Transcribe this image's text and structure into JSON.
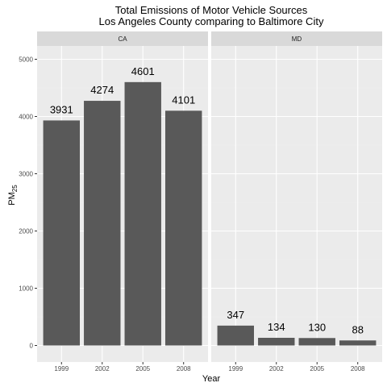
{
  "chart_data": {
    "type": "bar",
    "title": "Total Emissions of Motor Vehicle Sources",
    "subtitle": "Los Angeles County comparing to Baltimore City",
    "xlabel": "Year",
    "ylabel": "PM",
    "ylabel_subscript": "25",
    "ylim": [
      0,
      5000
    ],
    "yticks": [
      0,
      1000,
      2000,
      3000,
      4000,
      5000
    ],
    "grid": true,
    "categories": [
      "1999",
      "2002",
      "2005",
      "2008"
    ],
    "panels": [
      {
        "name": "CA",
        "values": [
          3931,
          4274,
          4601,
          4101
        ]
      },
      {
        "name": "MD",
        "values": [
          347,
          134,
          130,
          88
        ]
      }
    ],
    "colors": {
      "panel_background": "#ebebeb",
      "strip_background": "#d9d9d9",
      "grid_major": "#ffffff",
      "grid_minor": "#f2f2f2",
      "bar_fill": "#595959"
    }
  }
}
